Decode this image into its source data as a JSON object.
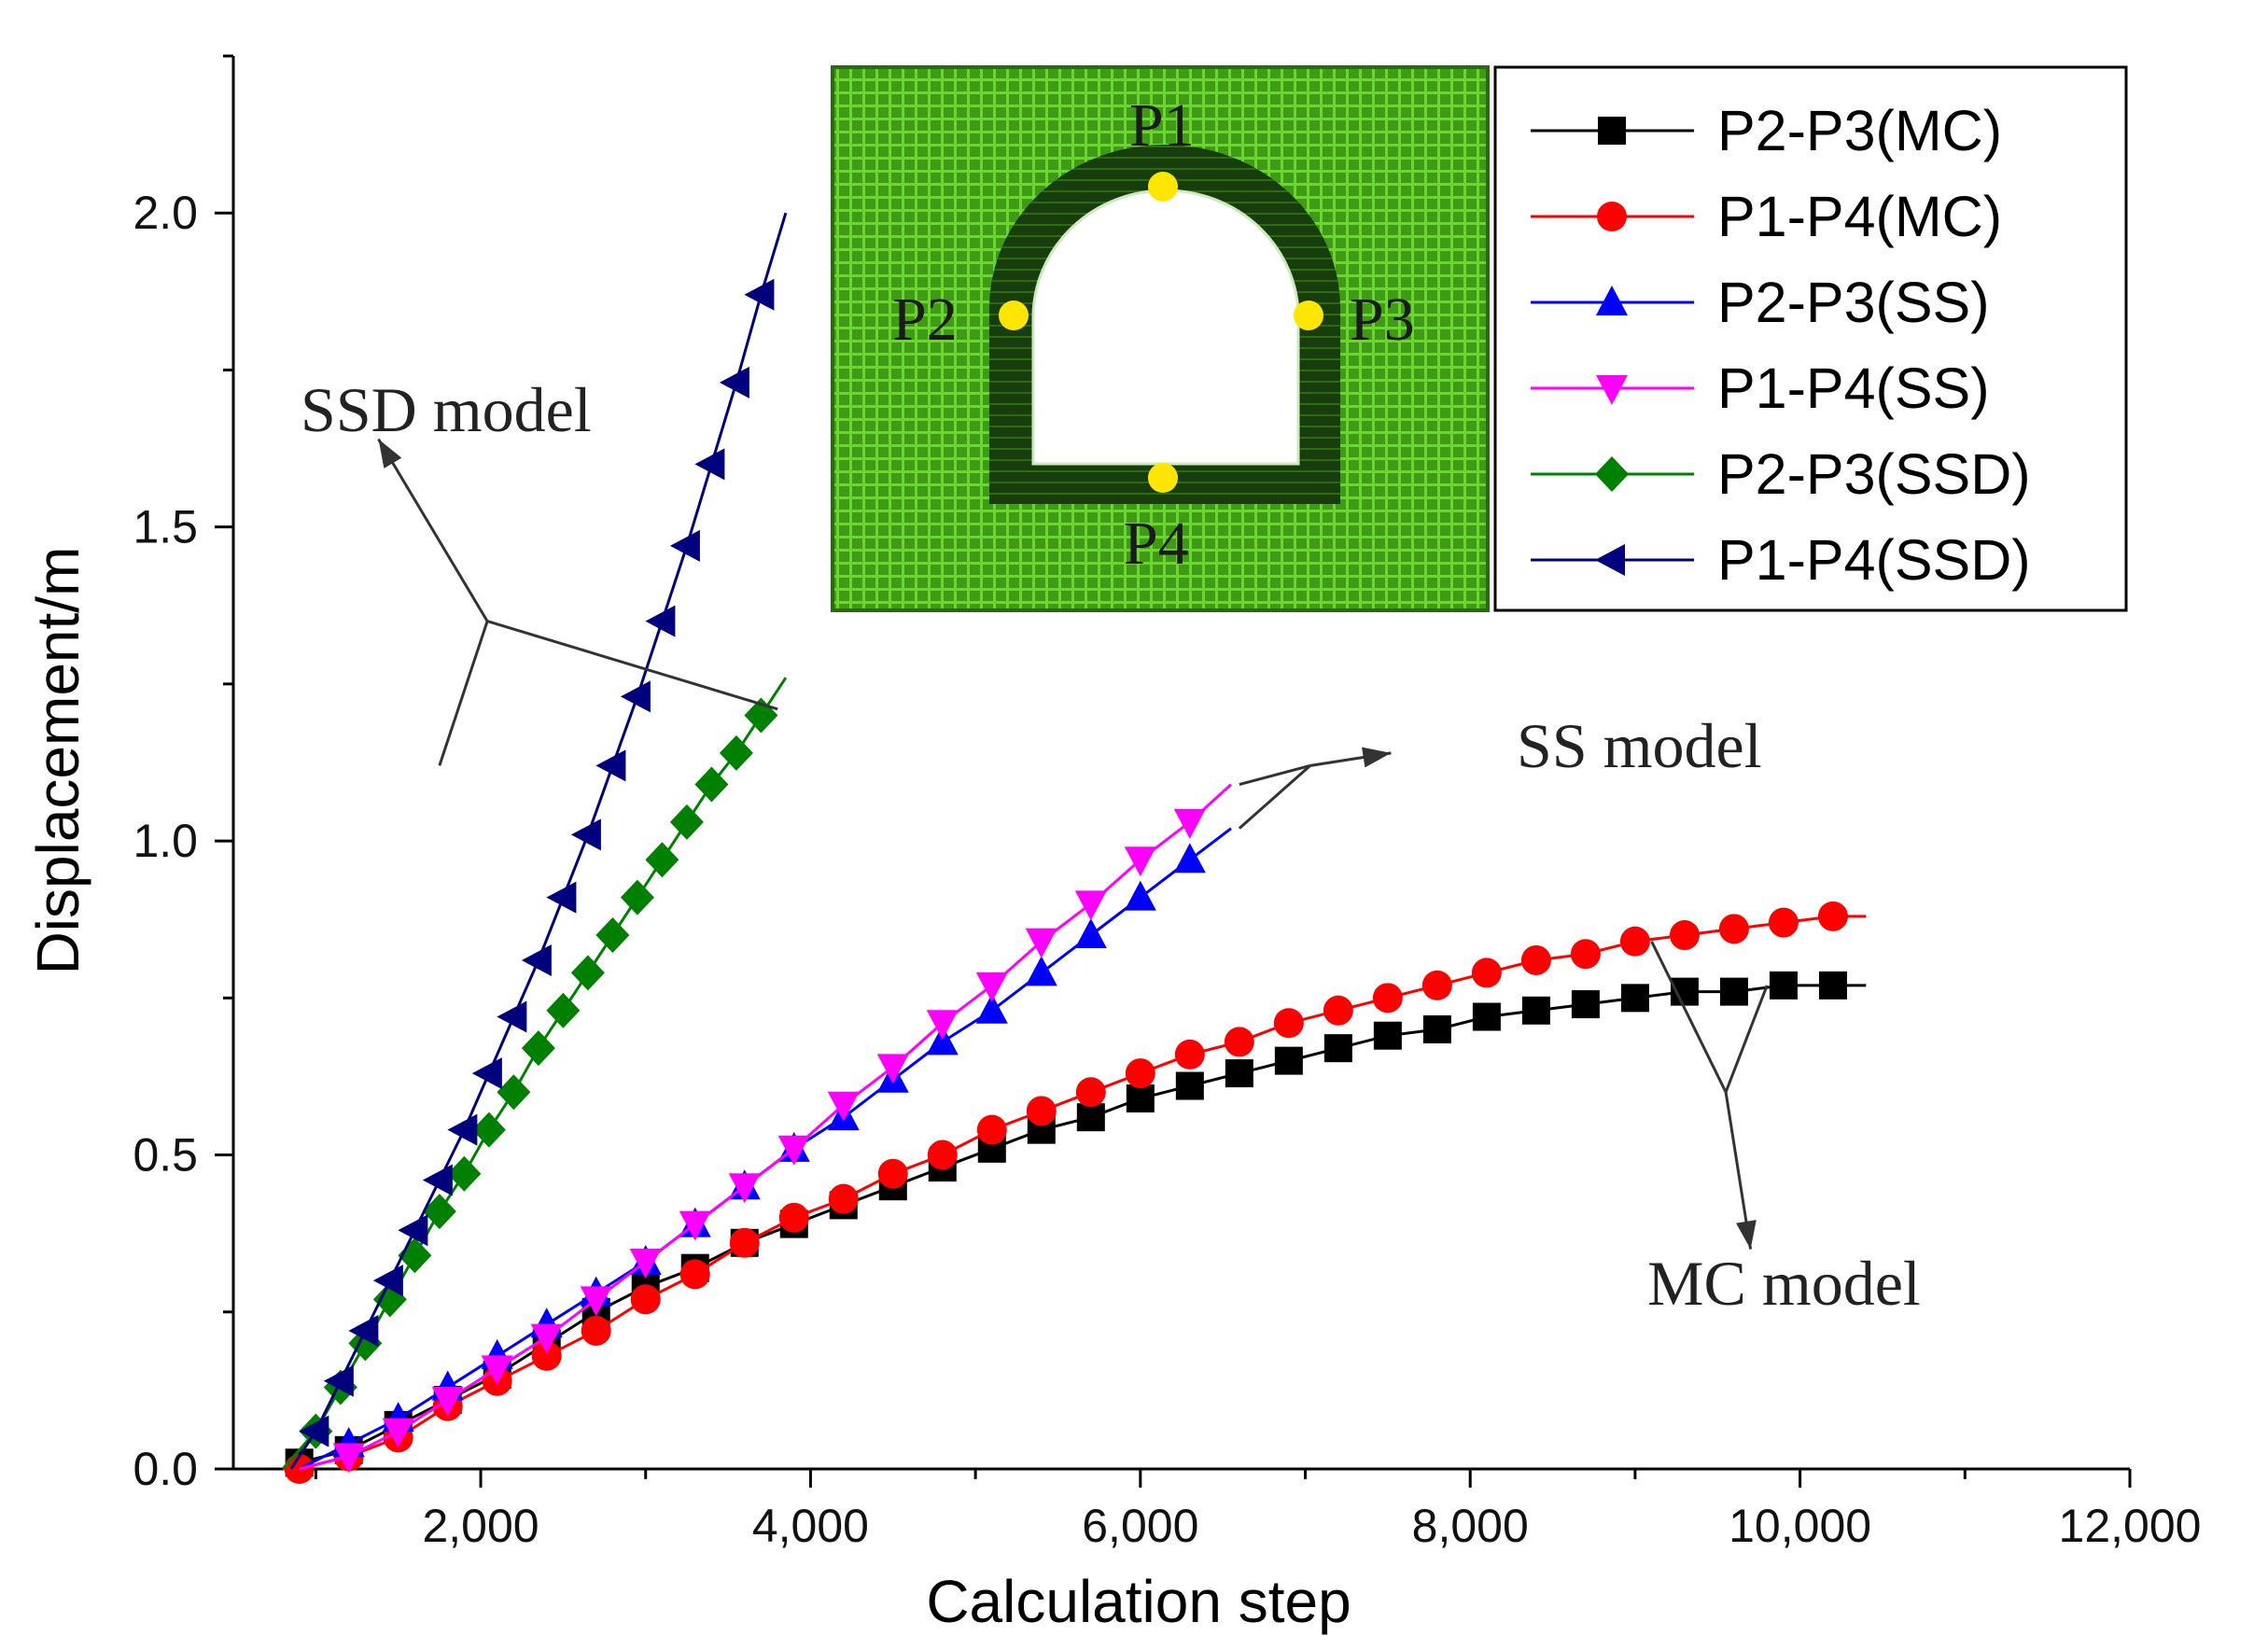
{
  "chart_data": {
    "type": "line",
    "title": "",
    "xlabel": "Calculation step",
    "ylabel": "Displacement/m",
    "xlim": [
      500,
      12000
    ],
    "ylim": [
      0,
      2.25
    ],
    "xticks": [
      2000,
      4000,
      6000,
      8000,
      10000,
      12000
    ],
    "xtick_labels": [
      "2,000",
      "4,000",
      "6,000",
      "8,000",
      "10,000",
      "12,000"
    ],
    "yticks": [
      0.0,
      0.5,
      1.0,
      1.5,
      2.0
    ],
    "ytick_labels": [
      "0.0",
      "0.5",
      "1.0",
      "1.5",
      "2.0"
    ],
    "legend_position": "top-right",
    "series": [
      {
        "name": "P2-P3(MC)",
        "color": "#000000",
        "marker": "square",
        "x": [
          800,
          900,
          1200,
          1500,
          1800,
          2100,
          2400,
          2700,
          3000,
          3300,
          3600,
          3900,
          4200,
          4500,
          4800,
          5100,
          5400,
          5700,
          6000,
          6300,
          6600,
          6900,
          7200,
          7500,
          7800,
          8100,
          8400,
          8700,
          9000,
          9300,
          9600,
          9900,
          10200,
          10400
        ],
        "y": [
          0.0,
          0.01,
          0.03,
          0.07,
          0.11,
          0.15,
          0.2,
          0.25,
          0.29,
          0.32,
          0.36,
          0.39,
          0.42,
          0.45,
          0.48,
          0.51,
          0.54,
          0.56,
          0.59,
          0.61,
          0.63,
          0.65,
          0.67,
          0.69,
          0.7,
          0.72,
          0.73,
          0.74,
          0.75,
          0.76,
          0.76,
          0.77,
          0.77,
          0.77
        ]
      },
      {
        "name": "P1-P4(MC)",
        "color": "#ff0000",
        "marker": "circle",
        "x": [
          800,
          900,
          1200,
          1500,
          1800,
          2100,
          2400,
          2700,
          3000,
          3300,
          3600,
          3900,
          4200,
          4500,
          4800,
          5100,
          5400,
          5700,
          6000,
          6300,
          6600,
          6900,
          7200,
          7500,
          7800,
          8100,
          8400,
          8700,
          9000,
          9300,
          9600,
          9900,
          10200,
          10400
        ],
        "y": [
          0.0,
          0.0,
          0.02,
          0.05,
          0.1,
          0.14,
          0.18,
          0.22,
          0.27,
          0.31,
          0.36,
          0.4,
          0.43,
          0.47,
          0.5,
          0.54,
          0.57,
          0.6,
          0.63,
          0.66,
          0.68,
          0.71,
          0.73,
          0.75,
          0.77,
          0.79,
          0.81,
          0.82,
          0.84,
          0.85,
          0.86,
          0.87,
          0.88,
          0.88
        ]
      },
      {
        "name": "P2-P3(SS)",
        "color": "#0000ff",
        "marker": "triangle-up",
        "x": [
          900,
          1200,
          1500,
          1800,
          2100,
          2400,
          2700,
          3000,
          3300,
          3600,
          3900,
          4200,
          4500,
          4800,
          5100,
          5400,
          5700,
          6000,
          6300,
          6550
        ],
        "y": [
          0.0,
          0.04,
          0.08,
          0.13,
          0.18,
          0.23,
          0.28,
          0.33,
          0.39,
          0.45,
          0.51,
          0.56,
          0.62,
          0.68,
          0.73,
          0.79,
          0.85,
          0.91,
          0.97,
          1.02
        ]
      },
      {
        "name": "P1-P4(SS)",
        "color": "#ff00ff",
        "marker": "triangle-down",
        "x": [
          900,
          1200,
          1500,
          1800,
          2100,
          2400,
          2700,
          3000,
          3300,
          3600,
          3900,
          4200,
          4500,
          4800,
          5100,
          5400,
          5700,
          6000,
          6300,
          6550
        ],
        "y": [
          0.0,
          0.02,
          0.06,
          0.11,
          0.16,
          0.21,
          0.27,
          0.33,
          0.39,
          0.45,
          0.51,
          0.58,
          0.64,
          0.71,
          0.77,
          0.84,
          0.9,
          0.97,
          1.03,
          1.09
        ]
      },
      {
        "name": "P2-P3(SSD)",
        "color": "#008000",
        "marker": "diamond",
        "x": [
          800,
          1000,
          1150,
          1300,
          1450,
          1600,
          1750,
          1900,
          2050,
          2200,
          2350,
          2500,
          2650,
          2800,
          2950,
          3100,
          3250,
          3400,
          3550,
          3700,
          3850
        ],
        "y": [
          0.0,
          0.06,
          0.13,
          0.2,
          0.27,
          0.34,
          0.41,
          0.47,
          0.54,
          0.6,
          0.67,
          0.73,
          0.79,
          0.85,
          0.91,
          0.97,
          1.03,
          1.09,
          1.14,
          1.2,
          1.26
        ]
      },
      {
        "name": "P1-P4(SSD)",
        "color": "#00007f",
        "marker": "triangle-left",
        "x": [
          850,
          1000,
          1150,
          1300,
          1450,
          1600,
          1750,
          1900,
          2050,
          2200,
          2350,
          2500,
          2650,
          2800,
          2950,
          3100,
          3250,
          3400,
          3550,
          3700,
          3850
        ],
        "y": [
          0.0,
          0.06,
          0.14,
          0.22,
          0.3,
          0.38,
          0.46,
          0.54,
          0.63,
          0.72,
          0.81,
          0.91,
          1.01,
          1.12,
          1.23,
          1.35,
          1.47,
          1.6,
          1.73,
          1.87,
          2.0
        ]
      }
    ],
    "annotations": [
      {
        "label": "SSD model",
        "tip": [
          1380,
          1.64
        ],
        "points_to": [
          [
            1750,
            1.12
          ],
          [
            3800,
            1.21
          ]
        ]
      },
      {
        "label": "SS model",
        "tip": [
          7520,
          1.14
        ],
        "points_to": [
          [
            6600,
            1.09
          ],
          [
            6600,
            1.02
          ]
        ]
      },
      {
        "label": "MC model",
        "tip": [
          9700,
          0.35
        ],
        "points_to": [
          [
            9100,
            0.84
          ],
          [
            9800,
            0.77
          ]
        ]
      }
    ],
    "inset": {
      "description_labels": [
        "P1",
        "P2",
        "P3",
        "P4"
      ]
    }
  }
}
